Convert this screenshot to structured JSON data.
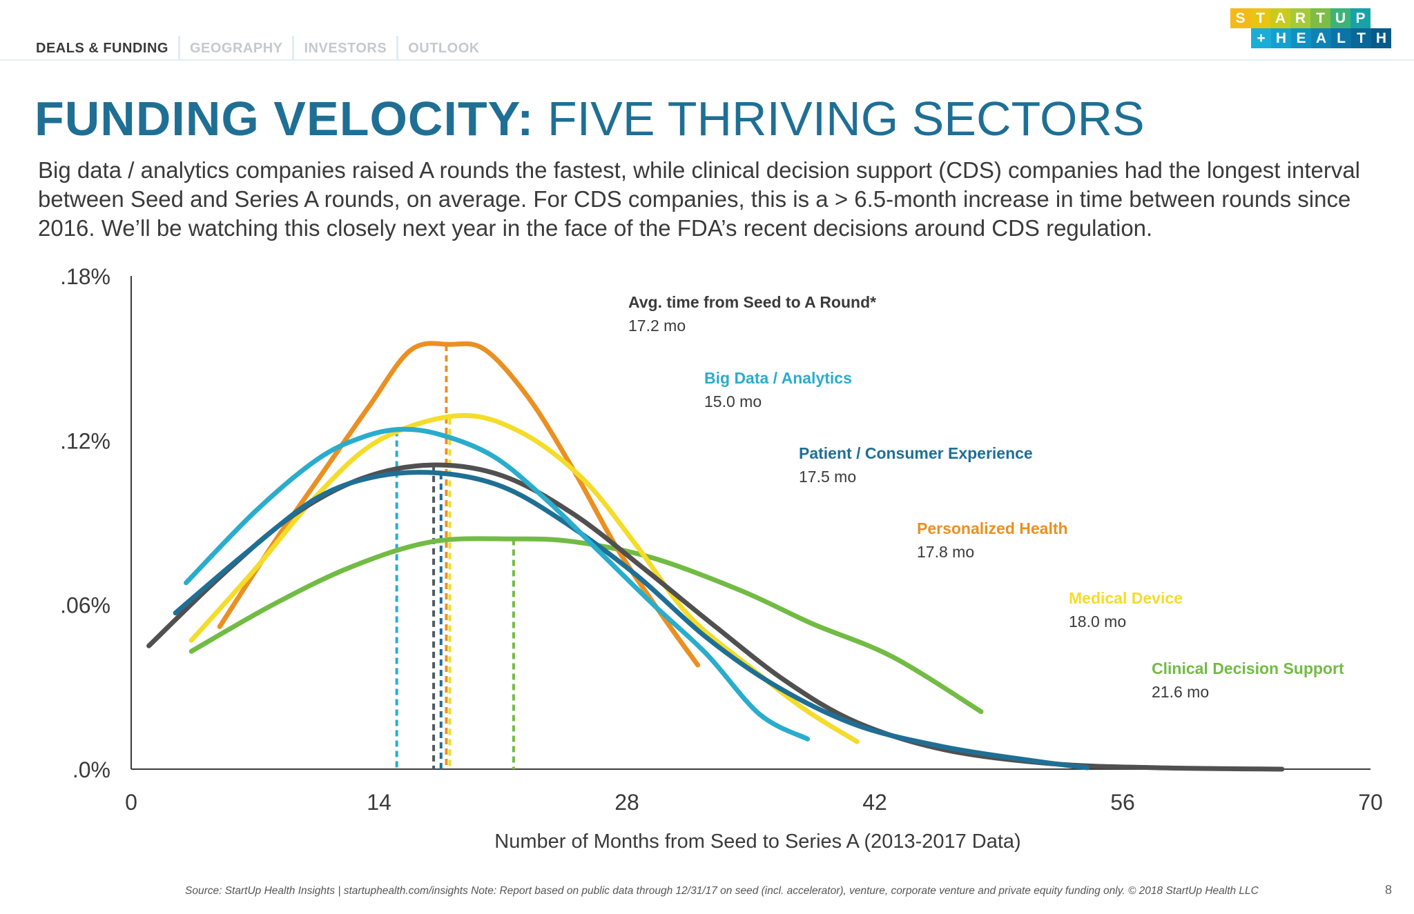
{
  "nav": {
    "tabs": [
      {
        "label": "DEALS & FUNDING",
        "active": true
      },
      {
        "label": "GEOGRAPHY",
        "active": false
      },
      {
        "label": "INVESTORS",
        "active": false
      },
      {
        "label": "OUTLOOK",
        "active": false
      }
    ]
  },
  "logo": {
    "row1": [
      "S",
      "T",
      "A",
      "R",
      "T",
      "U",
      "P"
    ],
    "row2": [
      "+",
      "H",
      "E",
      "A",
      "L",
      "T",
      "H"
    ],
    "row1_colors": [
      "#f6b91a",
      "#e8c414",
      "#c9cb1c",
      "#a6c93a",
      "#7dbd45",
      "#3fb278",
      "#17a2a7"
    ],
    "row2_colors": [
      "#1aaed6",
      "#14a0cf",
      "#1190c2",
      "#0e82b4",
      "#0b74a6",
      "#096898",
      "#075b8a"
    ]
  },
  "title": {
    "bold": "FUNDING VELOCITY:",
    "light": "FIVE THRIVING SECTORS"
  },
  "subtitle": "Big data / analytics companies raised A rounds the fastest, while clinical decision support (CDS) companies had the longest interval between Seed and Series A rounds, on average. For CDS companies, this is a > 6.5-month increase in time between rounds since 2016. We’ll be watching this closely next year in the face of the FDA’s recent decisions around CDS regulation.",
  "chart_data": {
    "type": "line",
    "title": "",
    "xlabel": "Number of Months from Seed to Series A (2013-2017 Data)",
    "ylabel": "",
    "xlim": [
      0,
      70
    ],
    "ylim": [
      0,
      0.18
    ],
    "x_ticks": [
      0,
      14,
      28,
      42,
      56,
      70
    ],
    "x_tick_labels": [
      "0",
      "14",
      "28",
      "42",
      "56",
      "70"
    ],
    "y_ticks": [
      0,
      0.06,
      0.12,
      0.18
    ],
    "y_tick_labels": [
      ".0%",
      ".06%",
      ".12%",
      ".18%"
    ],
    "grid": false,
    "legend_position": "right",
    "legend_title": "Avg. time from Seed to A Round*",
    "legend_title_value": "17.2 mo",
    "average_marker": {
      "x": 17.2,
      "color": "#505a60"
    },
    "series": [
      {
        "name": "Big Data / Analytics",
        "value_label": "15.0 mo",
        "mean": 15.0,
        "color": "#2aaccc",
        "points": [
          [
            3.1,
            0.068
          ],
          [
            7,
            0.094
          ],
          [
            10.5,
            0.113
          ],
          [
            13,
            0.121
          ],
          [
            15.2,
            0.124
          ],
          [
            17.5,
            0.122
          ],
          [
            20.5,
            0.114
          ],
          [
            23.5,
            0.098
          ],
          [
            26.5,
            0.079
          ],
          [
            29.5,
            0.06
          ],
          [
            32.5,
            0.042
          ],
          [
            35.5,
            0.02
          ],
          [
            38.2,
            0.011
          ]
        ]
      },
      {
        "name": "Patient / Consumer Experience",
        "value_label": "17.5 mo",
        "mean": 17.5,
        "color": "#1f6f95",
        "points": [
          [
            2.5,
            0.057
          ],
          [
            6.5,
            0.079
          ],
          [
            10.5,
            0.099
          ],
          [
            14,
            0.107
          ],
          [
            17.5,
            0.108
          ],
          [
            21,
            0.103
          ],
          [
            24.5,
            0.09
          ],
          [
            28.5,
            0.071
          ],
          [
            32.5,
            0.048
          ],
          [
            36.5,
            0.03
          ],
          [
            41,
            0.016
          ],
          [
            46,
            0.008
          ],
          [
            51,
            0.003
          ],
          [
            54,
            0.0005
          ]
        ]
      },
      {
        "name": "Personalized Health",
        "value_label": "17.8 mo",
        "mean": 17.8,
        "color": "#ea9022",
        "points": [
          [
            5,
            0.052
          ],
          [
            8,
            0.082
          ],
          [
            10.8,
            0.108
          ],
          [
            13.5,
            0.133
          ],
          [
            15.8,
            0.153
          ],
          [
            18,
            0.155
          ],
          [
            20,
            0.153
          ],
          [
            22.5,
            0.135
          ],
          [
            25,
            0.109
          ],
          [
            27.5,
            0.08
          ],
          [
            30,
            0.056
          ],
          [
            32,
            0.038
          ]
        ]
      },
      {
        "name": "Medical Device",
        "value_label": "18.0 mo",
        "mean": 18.0,
        "color": "#f4dc2a",
        "points": [
          [
            3.4,
            0.047
          ],
          [
            7,
            0.073
          ],
          [
            10.5,
            0.1
          ],
          [
            14,
            0.12
          ],
          [
            18.5,
            0.129
          ],
          [
            22,
            0.123
          ],
          [
            25.5,
            0.106
          ],
          [
            28.5,
            0.082
          ],
          [
            31.5,
            0.056
          ],
          [
            35,
            0.037
          ],
          [
            38,
            0.022
          ],
          [
            41,
            0.01
          ]
        ]
      },
      {
        "name": "Clinical Decision Support",
        "value_label": "21.6 mo",
        "mean": 21.6,
        "color": "#72bb44",
        "points": [
          [
            3.4,
            0.043
          ],
          [
            8,
            0.06
          ],
          [
            12.5,
            0.074
          ],
          [
            17,
            0.083
          ],
          [
            21.5,
            0.084
          ],
          [
            25,
            0.083
          ],
          [
            29.5,
            0.077
          ],
          [
            34.5,
            0.065
          ],
          [
            38.5,
            0.053
          ],
          [
            43,
            0.041
          ],
          [
            48,
            0.021
          ]
        ]
      },
      {
        "name": "Overall Average",
        "value_label": "",
        "mean": 17.2,
        "color": "#505050",
        "points": [
          [
            1,
            0.045
          ],
          [
            5,
            0.07
          ],
          [
            9,
            0.092
          ],
          [
            13,
            0.106
          ],
          [
            17,
            0.111
          ],
          [
            21,
            0.107
          ],
          [
            25,
            0.093
          ],
          [
            29,
            0.073
          ],
          [
            33,
            0.052
          ],
          [
            37,
            0.032
          ],
          [
            41,
            0.017
          ],
          [
            46,
            0.007
          ],
          [
            52,
            0.002
          ],
          [
            58,
            0.0005
          ],
          [
            65,
            0
          ]
        ]
      }
    ]
  },
  "footer": {
    "source": "Source: StartUp Health Insights | startuphealth.com/insights Note: Report based on public data through 12/31/17 on seed (incl. accelerator), venture, corporate venture and private equity funding only. © 2018 StartUp Health LLC",
    "page": "8"
  }
}
